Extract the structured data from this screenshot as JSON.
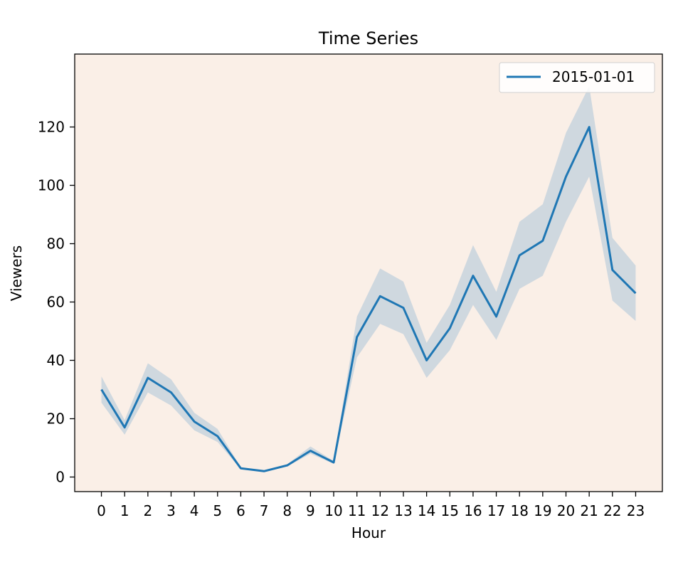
{
  "chart_data": {
    "type": "line",
    "title": "Time Series",
    "xlabel": "Hour",
    "ylabel": "Viewers",
    "x": [
      0,
      1,
      2,
      3,
      4,
      5,
      6,
      7,
      8,
      9,
      10,
      11,
      12,
      13,
      14,
      15,
      16,
      17,
      18,
      19,
      20,
      21,
      22,
      23
    ],
    "x_tick_labels": [
      "0",
      "1",
      "2",
      "3",
      "4",
      "5",
      "6",
      "7",
      "8",
      "9",
      "10",
      "11",
      "12",
      "13",
      "14",
      "15",
      "16",
      "17",
      "18",
      "19",
      "20",
      "21",
      "22",
      "23"
    ],
    "y_ticks": [
      0,
      20,
      40,
      60,
      80,
      100,
      120
    ],
    "y_tick_labels": [
      "0",
      "20",
      "40",
      "60",
      "80",
      "100",
      "120"
    ],
    "xlim": [
      -1.15,
      24.15
    ],
    "ylim": [
      -5,
      145
    ],
    "grid": false,
    "legend_position": "top-right",
    "background_color": "#faefe7",
    "series": [
      {
        "name": "2015-01-01",
        "color": "#1f77b4",
        "band_color": "#cfd8df",
        "values": [
          30,
          17,
          34,
          29,
          19,
          14,
          3,
          2,
          4,
          9,
          5,
          48,
          62,
          58,
          40,
          51,
          69,
          55,
          76,
          81,
          103,
          120,
          71,
          63
        ],
        "upper": [
          34.5,
          19.5,
          39,
          33.5,
          22,
          16.5,
          3.3,
          2.3,
          4.4,
          10.5,
          5.5,
          55,
          71.5,
          67,
          46,
          59,
          79.5,
          63.5,
          87.5,
          93.5,
          118,
          134,
          82,
          72.5
        ],
        "lower": [
          25.5,
          14.5,
          29,
          24.5,
          16,
          12,
          2.7,
          1.8,
          3.6,
          8,
          4.5,
          41,
          52.5,
          49,
          34,
          43.5,
          59,
          47,
          64.5,
          69,
          87.5,
          103,
          60.5,
          53.5
        ]
      }
    ]
  }
}
